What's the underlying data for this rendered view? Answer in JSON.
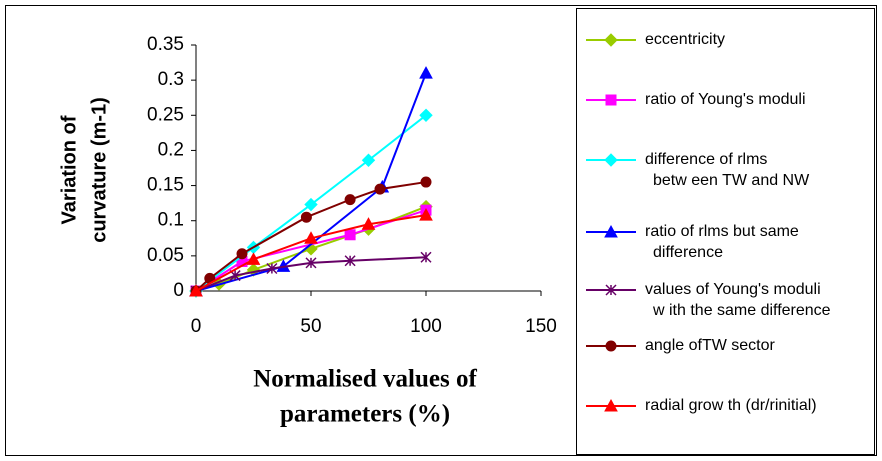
{
  "chart_data": {
    "type": "line",
    "ylabel": [
      "Variation of",
      "curvature (m-1)"
    ],
    "xlabel": [
      "Normalised values of",
      "parameters (%)"
    ],
    "xlim": [
      0,
      150
    ],
    "xticks": [
      0,
      50,
      100,
      150
    ],
    "ylim": [
      0,
      0.35
    ],
    "yticks": [
      0,
      0.05,
      0.1,
      0.15,
      0.2,
      0.25,
      0.3,
      0.35
    ],
    "series": [
      {
        "name": "eccentricity",
        "color": "#99cc00",
        "marker": "diamond",
        "x": [
          0,
          10,
          25,
          50,
          75,
          100
        ],
        "values": [
          0,
          0.01,
          0.03,
          0.06,
          0.088,
          0.12
        ]
      },
      {
        "name": "ratio of Young's moduli",
        "color": "#ff00ff",
        "marker": "square",
        "x": [
          0,
          20,
          67,
          100
        ],
        "values": [
          0,
          0.042,
          0.08,
          0.115
        ]
      },
      {
        "name": "difference of rlms\nbetw een TW and NW",
        "color": "#00ffff",
        "marker": "diamond",
        "x": [
          0,
          25,
          50,
          75,
          100
        ],
        "values": [
          0,
          0.062,
          0.123,
          0.186,
          0.25
        ]
      },
      {
        "name": "ratio of rlms but same\ndifference",
        "color": "#0000ff",
        "marker": "triangle",
        "x": [
          0,
          38,
          81,
          100
        ],
        "values": [
          0,
          0.035,
          0.148,
          0.31
        ]
      },
      {
        "name": "values of Young's moduli\nw ith the same difference",
        "color": "#660066",
        "marker": "star",
        "x": [
          0,
          17,
          33,
          50,
          67,
          100
        ],
        "values": [
          0,
          0.022,
          0.032,
          0.04,
          0.043,
          0.048
        ]
      },
      {
        "name": "angle ofTW sector",
        "color": "#800000",
        "marker": "circle",
        "x": [
          0,
          6,
          20,
          48,
          67,
          80,
          100
        ],
        "values": [
          0,
          0.018,
          0.053,
          0.105,
          0.13,
          0.145,
          0.155
        ]
      },
      {
        "name": "radial grow th (dr/rinitial)",
        "color": "#ff0000",
        "marker": "triangle",
        "x": [
          0,
          25,
          50,
          75,
          100
        ],
        "values": [
          0,
          0.045,
          0.075,
          0.095,
          0.108
        ]
      }
    ]
  }
}
